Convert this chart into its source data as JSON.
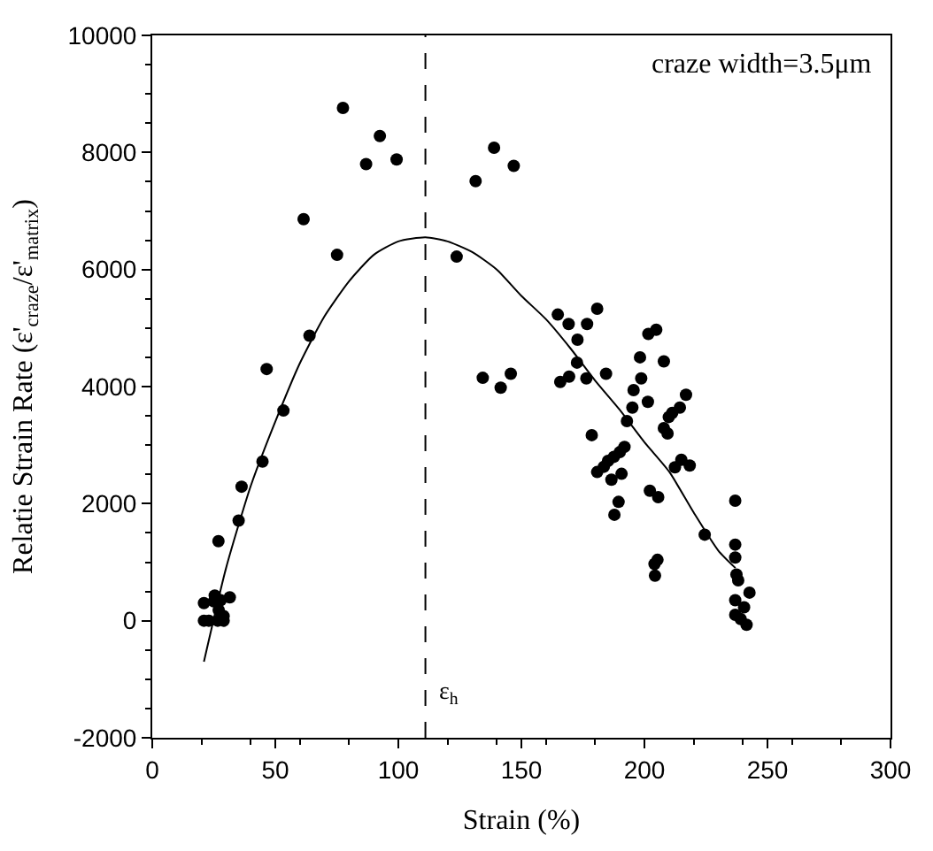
{
  "chart_data": {
    "type": "scatter",
    "xlabel": "Strain (%)",
    "ylabel": "Relatie Strain Rate (ε'$_{craze}$/ε'$_{matrix}$)",
    "xlim": [
      0,
      300
    ],
    "xticks": [
      0,
      50,
      100,
      150,
      200,
      250,
      300
    ],
    "ylim": [
      -2000,
      10000
    ],
    "yticks": [
      -2000,
      0,
      2000,
      4000,
      6000,
      8000,
      10000
    ],
    "legend": false,
    "marker": "circle",
    "annotations": [
      "craze width=3.5μm"
    ],
    "ref_lines": [
      {
        "axis": "x",
        "value": 111,
        "label": "ε$_{h}$",
        "color": "#000000",
        "line_style": "dashed"
      }
    ],
    "series": [
      {
        "color": "#000000",
        "x": [
          77.5,
          92.5,
          86.9,
          99.3,
          61.5,
          75.1,
          63.9,
          46.5,
          53.3,
          44.8,
          36.3,
          35.1,
          26.9,
          21,
          23,
          25,
          21,
          27.8,
          31.5,
          27,
          29,
          26.6,
          29,
          25.4,
          131.4,
          138.9,
          146.9,
          123.7,
          134.3,
          141.6,
          145.7,
          164.8,
          169.2,
          180.8,
          176.7,
          172.8,
          172.6,
          165.8,
          169.4,
          176.4,
          184.4,
          178.6,
          204.8,
          201.6,
          198.2,
          207.9,
          198.7,
          195.6,
          201.4,
          195.1,
          192.9,
          216.9,
          214.4,
          211.3,
          209.9,
          207.9,
          209.4,
          191.9,
          190,
          187.6,
          185.2,
          183.5,
          180.8,
          190.7,
          186.6,
          189.5,
          187.8,
          202.2,
          205.6,
          215,
          218.4,
          212.4,
          224.5,
          205.3,
          204.1,
          204.3,
          236.9,
          236.9,
          236.9,
          237.4,
          238.1,
          242.7,
          236.9,
          240.5,
          236.9,
          239.1,
          241.5
        ],
        "values": [
          8760,
          8280,
          7800,
          7880,
          6860,
          6250,
          4870,
          4300,
          3590,
          2720,
          2290,
          1710,
          1360,
          0,
          0,
          330,
          300,
          350,
          400,
          180,
          80,
          0,
          0,
          430,
          7510,
          8080,
          7770,
          6220,
          4150,
          3980,
          4220,
          5230,
          5070,
          5330,
          5070,
          4800,
          4410,
          4080,
          4170,
          4140,
          4220,
          3170,
          4970,
          4900,
          4500,
          4430,
          4140,
          3940,
          3740,
          3640,
          3410,
          3860,
          3640,
          3550,
          3480,
          3290,
          3200,
          2970,
          2880,
          2800,
          2730,
          2630,
          2540,
          2510,
          2410,
          2030,
          1810,
          2220,
          2110,
          2750,
          2650,
          2620,
          1470,
          1040,
          970,
          770,
          2050,
          1300,
          1080,
          790,
          690,
          480,
          350,
          230,
          100,
          30,
          -70
        ]
      },
      {
        "type": "line",
        "marker": "none",
        "color": "#000000",
        "x": [
          21,
          30,
          40,
          50,
          60,
          70,
          80,
          90,
          100,
          111,
          120,
          130,
          140,
          150,
          160,
          170,
          180,
          190,
          200,
          210,
          220,
          230,
          237
        ],
        "values": [
          -700,
          900,
          2300,
          3400,
          4400,
          5200,
          5800,
          6250,
          6480,
          6550,
          6480,
          6300,
          6000,
          5550,
          5150,
          4650,
          4100,
          3600,
          3050,
          2550,
          1850,
          1200,
          900
        ]
      }
    ]
  }
}
